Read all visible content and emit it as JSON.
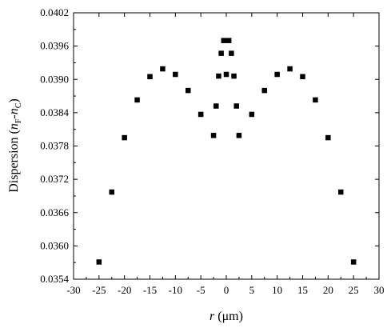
{
  "chart_data": {
    "type": "scatter",
    "xlabel_var": "r",
    "xlabel_unit": " (μm)",
    "ylabel_parts": {
      "prefix": "Dispersion (",
      "n1": "n",
      "sub1": "F",
      "dash": "-",
      "n2": "n",
      "sub2": "C",
      "suffix": ")"
    },
    "xlim": [
      -30,
      30
    ],
    "ylim": [
      0.0354,
      0.0402
    ],
    "x_ticks": [
      -30,
      -25,
      -20,
      -15,
      -10,
      -5,
      0,
      5,
      10,
      15,
      20,
      25,
      30
    ],
    "y_ticks": [
      "0.0354",
      "0.0360",
      "0.0366",
      "0.0372",
      "0.0378",
      "0.0384",
      "0.0390",
      "0.0396",
      "0.0402"
    ],
    "grid": false,
    "marker": "square",
    "marker_color": "#000000",
    "points": [
      {
        "x": -25,
        "y": 0.03571
      },
      {
        "x": -22.5,
        "y": 0.03697
      },
      {
        "x": -20,
        "y": 0.03795
      },
      {
        "x": -17.5,
        "y": 0.03863
      },
      {
        "x": -15,
        "y": 0.03905
      },
      {
        "x": -12.5,
        "y": 0.03919
      },
      {
        "x": -10,
        "y": 0.03909
      },
      {
        "x": -7.5,
        "y": 0.0388
      },
      {
        "x": -5,
        "y": 0.03837
      },
      {
        "x": -2.5,
        "y": 0.03799
      },
      {
        "x": -2,
        "y": 0.03852
      },
      {
        "x": -1.5,
        "y": 0.03906
      },
      {
        "x": -1,
        "y": 0.03947
      },
      {
        "x": -0.5,
        "y": 0.0397
      },
      {
        "x": 0,
        "y": 0.03909
      },
      {
        "x": 0.5,
        "y": 0.0397
      },
      {
        "x": 1,
        "y": 0.03947
      },
      {
        "x": 1.5,
        "y": 0.03906
      },
      {
        "x": 2,
        "y": 0.03852
      },
      {
        "x": 2.5,
        "y": 0.03799
      },
      {
        "x": 5,
        "y": 0.03837
      },
      {
        "x": 7.5,
        "y": 0.0388
      },
      {
        "x": 10,
        "y": 0.03909
      },
      {
        "x": 12.5,
        "y": 0.03919
      },
      {
        "x": 15,
        "y": 0.03905
      },
      {
        "x": 17.5,
        "y": 0.03863
      },
      {
        "x": 20,
        "y": 0.03795
      },
      {
        "x": 22.5,
        "y": 0.03697
      },
      {
        "x": 25,
        "y": 0.03571
      }
    ]
  }
}
